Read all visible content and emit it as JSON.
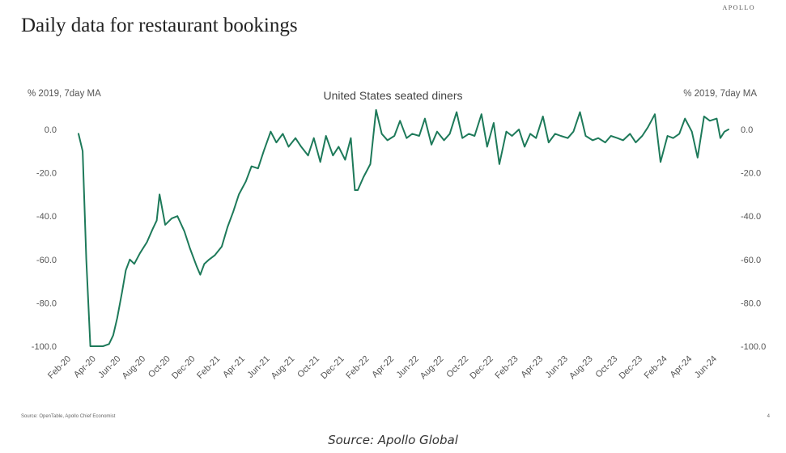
{
  "brand": "APOLLO",
  "title": "Daily data for restaurant bookings",
  "source_small": "Source: OpenTable, Apollo Chief Economist",
  "page_number": "4",
  "caption": "Source: Apollo Global",
  "colors": {
    "line": "#1e7a5a",
    "text": "#555555"
  },
  "chart_data": {
    "type": "line",
    "title": "United States seated diners",
    "ylabel_left": "% 2019, 7day MA",
    "ylabel_right": "% 2019, 7day MA",
    "ylim": [
      -100,
      0
    ],
    "yticks": [
      "0.0",
      "-20.0",
      "-40.0",
      "-60.0",
      "-80.0",
      "-100.0"
    ],
    "ytick_values": [
      0,
      -20,
      -40,
      -60,
      -80,
      -100
    ],
    "xticks": [
      "Feb-20",
      "Apr-20",
      "Jun-20",
      "Aug-20",
      "Oct-20",
      "Dec-20",
      "Feb-21",
      "Apr-21",
      "Jun-21",
      "Aug-21",
      "Oct-21",
      "Dec-21",
      "Feb-22",
      "Apr-22",
      "Jun-22",
      "Aug-22",
      "Oct-22",
      "Dec-22",
      "Feb-23",
      "Apr-23",
      "Jun-23",
      "Aug-23",
      "Oct-23",
      "Dec-23",
      "Feb-24",
      "Apr-24",
      "Jun-24"
    ],
    "grid": false,
    "legend": "none",
    "series": [
      {
        "x": [
          "2020-02-15",
          "2020-02-25",
          "2020-03-05",
          "2020-03-15",
          "2020-03-22",
          "2020-04-01",
          "2020-04-15",
          "2020-04-30",
          "2020-05-10",
          "2020-05-20",
          "2020-06-01",
          "2020-06-10",
          "2020-06-20",
          "2020-07-01",
          "2020-07-15",
          "2020-08-01",
          "2020-08-15",
          "2020-08-25",
          "2020-09-01",
          "2020-09-15",
          "2020-10-01",
          "2020-10-15",
          "2020-11-01",
          "2020-11-15",
          "2020-12-01",
          "2020-12-10",
          "2020-12-20",
          "2021-01-01",
          "2021-01-15",
          "2021-02-01",
          "2021-02-15",
          "2021-03-01",
          "2021-03-15",
          "2021-04-01",
          "2021-04-15",
          "2021-05-01",
          "2021-05-15",
          "2021-06-01",
          "2021-06-15",
          "2021-07-01",
          "2021-07-15",
          "2021-08-01",
          "2021-08-15",
          "2021-09-01",
          "2021-09-15",
          "2021-10-01",
          "2021-10-15",
          "2021-11-01",
          "2021-11-15",
          "2021-12-01",
          "2021-12-15",
          "2021-12-25",
          "2022-01-01",
          "2022-01-15",
          "2022-02-01",
          "2022-02-15",
          "2022-03-01",
          "2022-03-15",
          "2022-04-01",
          "2022-04-15",
          "2022-05-01",
          "2022-05-15",
          "2022-06-01",
          "2022-06-15",
          "2022-07-01",
          "2022-07-15",
          "2022-08-01",
          "2022-08-15",
          "2022-09-01",
          "2022-09-15",
          "2022-10-01",
          "2022-10-15",
          "2022-11-01",
          "2022-11-15",
          "2022-12-01",
          "2022-12-15",
          "2023-01-01",
          "2023-01-15",
          "2023-02-01",
          "2023-02-15",
          "2023-03-01",
          "2023-03-15",
          "2023-04-01",
          "2023-04-15",
          "2023-05-01",
          "2023-05-15",
          "2023-06-01",
          "2023-06-15",
          "2023-07-01",
          "2023-07-15",
          "2023-08-01",
          "2023-08-15",
          "2023-09-01",
          "2023-09-15",
          "2023-10-01",
          "2023-10-15",
          "2023-11-01",
          "2023-11-15",
          "2023-12-01",
          "2023-12-15",
          "2024-01-01",
          "2024-01-15",
          "2024-02-01",
          "2024-02-15",
          "2024-03-01",
          "2024-03-15",
          "2024-04-01",
          "2024-04-15",
          "2024-05-01",
          "2024-05-15",
          "2024-06-01",
          "2024-06-10",
          "2024-06-20",
          "2024-06-30"
        ],
        "values": [
          -2,
          -10,
          -60,
          -100,
          -100,
          -100,
          -100,
          -99,
          -95,
          -87,
          -75,
          -65,
          -60,
          -62,
          -57,
          -52,
          -46,
          -42,
          -30,
          -44,
          -41,
          -40,
          -47,
          -55,
          -63,
          -67,
          -62,
          -60,
          -58,
          -54,
          -45,
          -38,
          -30,
          -24,
          -17,
          -18,
          -10,
          -1,
          -6,
          -2,
          -8,
          -4,
          -8,
          -12,
          -4,
          -15,
          -3,
          -12,
          -8,
          -14,
          -4,
          -28,
          -28,
          -22,
          -16,
          9,
          -2,
          -5,
          -3,
          4,
          -4,
          -2,
          -3,
          5,
          -7,
          -1,
          -5,
          -2,
          8,
          -4,
          -2,
          -3,
          7,
          -8,
          3,
          -16,
          -1,
          -3,
          0,
          -8,
          -2,
          -4,
          6,
          -6,
          -2,
          -3,
          -4,
          -1,
          8,
          -3,
          -5,
          -4,
          -6,
          -3,
          -4,
          -5,
          -2,
          -6,
          -3,
          1,
          7,
          -15,
          -3,
          -4,
          -2,
          5,
          -1,
          -13,
          6,
          4,
          5,
          -4,
          -1,
          0
        ]
      }
    ]
  }
}
